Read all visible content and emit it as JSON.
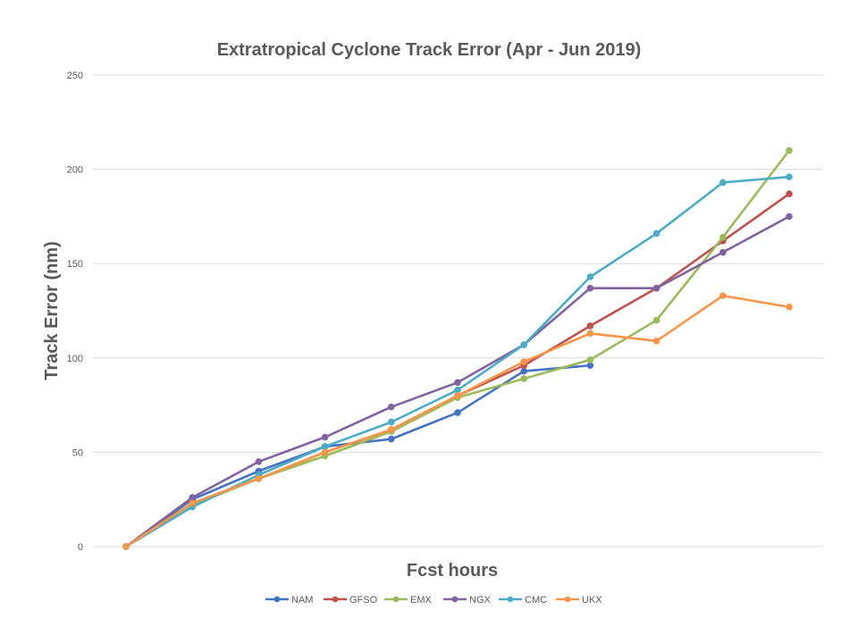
{
  "chart_data": {
    "type": "line",
    "title": "Extratropical Cyclone Track Error (Apr - Jun 2019)",
    "xlabel": "Fcst hours",
    "ylabel": "Track Error  (nm)",
    "x_ticks_labeled": false,
    "x": [
      1,
      2,
      3,
      4,
      5,
      6,
      7,
      8,
      9,
      10,
      11
    ],
    "ylim": [
      0,
      250
    ],
    "yticks": [
      0,
      50,
      100,
      150,
      200,
      250
    ],
    "grid": true,
    "legend_position": "bottom",
    "series": [
      {
        "name": "NAM",
        "color": "#4472c4",
        "values": [
          0,
          25,
          40,
          53,
          57,
          71,
          93,
          96,
          null,
          null,
          null
        ]
      },
      {
        "name": "GFSO",
        "color": "#c0504d",
        "values": [
          0,
          23,
          36,
          50,
          62,
          80,
          96,
          117,
          137,
          162,
          187
        ]
      },
      {
        "name": "EMX",
        "color": "#9bbb59",
        "values": [
          0,
          22,
          36,
          48,
          61,
          79,
          89,
          99,
          120,
          164,
          210
        ]
      },
      {
        "name": "NGX",
        "color": "#8064a2",
        "values": [
          0,
          26,
          45,
          58,
          74,
          87,
          107,
          137,
          137,
          156,
          175
        ]
      },
      {
        "name": "CMC",
        "color": "#4bacc6",
        "values": [
          0,
          21,
          38,
          53,
          66,
          83,
          107,
          143,
          166,
          193,
          196
        ]
      },
      {
        "name": "UKX",
        "color": "#f79646",
        "values": [
          0,
          23,
          36,
          50,
          62,
          80,
          98,
          113,
          109,
          133,
          127
        ]
      }
    ]
  }
}
